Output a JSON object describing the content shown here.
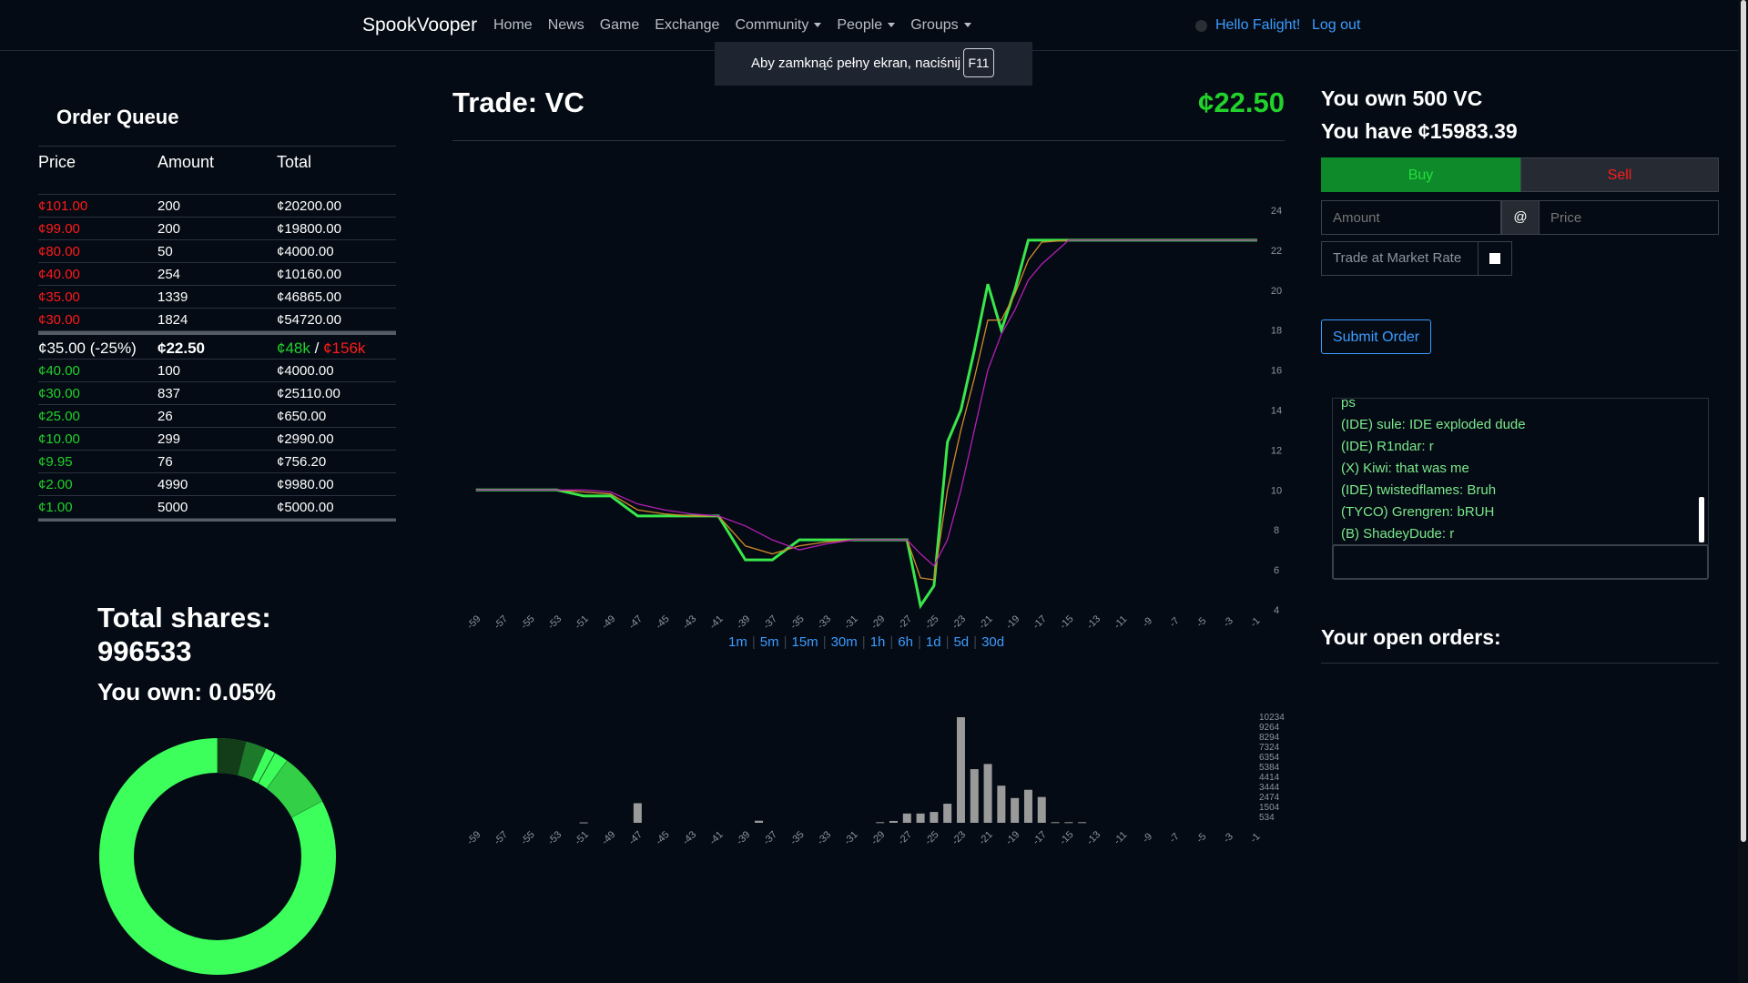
{
  "navbar": {
    "brand": "SpookVooper",
    "links": [
      "Home",
      "News",
      "Game",
      "Exchange",
      "Community",
      "People",
      "Groups"
    ],
    "hello": "Hello Falight!",
    "logout": "Log out"
  },
  "fullscreen_notice": {
    "text": "Aby zamknąć pełny ekran, naciśnij",
    "key": "F11"
  },
  "order_queue": {
    "title": "Order Queue",
    "headers": [
      "Price",
      "Amount",
      "Total"
    ],
    "asks": [
      {
        "price": "¢101.00",
        "amount": "200",
        "total": "¢20200.00"
      },
      {
        "price": "¢99.00",
        "amount": "200",
        "total": "¢19800.00"
      },
      {
        "price": "¢80.00",
        "amount": "50",
        "total": "¢4000.00"
      },
      {
        "price": "¢40.00",
        "amount": "254",
        "total": "¢10160.00"
      },
      {
        "price": "¢35.00",
        "amount": "1339",
        "total": "¢46865.00"
      },
      {
        "price": "¢30.00",
        "amount": "1824",
        "total": "¢54720.00"
      }
    ],
    "spread": {
      "left": "¢35.00 (-25%)",
      "mid": "¢22.50",
      "buy_vol": "¢48k",
      "slash": "/",
      "sell_vol": "¢156k"
    },
    "bids": [
      {
        "price": "¢40.00",
        "amount": "100",
        "total": "¢4000.00"
      },
      {
        "price": "¢30.00",
        "amount": "837",
        "total": "¢25110.00"
      },
      {
        "price": "¢25.00",
        "amount": "26",
        "total": "¢650.00"
      },
      {
        "price": "¢10.00",
        "amount": "299",
        "total": "¢2990.00"
      },
      {
        "price": "¢9.95",
        "amount": "76",
        "total": "¢756.20"
      },
      {
        "price": "¢2.00",
        "amount": "4990",
        "total": "¢9980.00"
      },
      {
        "price": "¢1.00",
        "amount": "5000",
        "total": "¢5000.00"
      }
    ]
  },
  "shares": {
    "total_label": "Total shares:",
    "total_value": "996533",
    "own_label": "You own: 0.05%",
    "owned_fraction": 0.0005
  },
  "trade": {
    "title": "Trade: VC",
    "price": "¢22.50"
  },
  "ranges": [
    "1m",
    "5m",
    "15m",
    "30m",
    "1h",
    "6h",
    "1d",
    "5d",
    "30d"
  ],
  "chart_data": [
    {
      "type": "line",
      "x": [
        -59,
        -57,
        -55,
        -53,
        -51,
        -49,
        -47,
        -45,
        -43,
        -41,
        -39,
        -37,
        -35,
        -33,
        -31,
        -29,
        -27,
        -26,
        -25,
        -24,
        -23,
        -22,
        -21,
        -20,
        -19,
        -18,
        -17,
        -15,
        -13,
        -11,
        -9,
        -7,
        -5,
        -3,
        -1
      ],
      "x_ticks": [
        -59,
        -57,
        -55,
        -53,
        -51,
        -49,
        -47,
        -45,
        -43,
        -41,
        -39,
        -37,
        -35,
        -33,
        -31,
        -29,
        -27,
        -25,
        -23,
        -21,
        -19,
        -17,
        -15,
        -13,
        -11,
        -9,
        -7,
        -5,
        -3,
        -1
      ],
      "y_ticks": [
        4,
        6,
        8,
        10,
        12,
        14,
        16,
        18,
        20,
        22,
        24
      ],
      "ylim": [
        4,
        24.5
      ],
      "series": [
        {
          "color": "#39e64b",
          "values": [
            10,
            10,
            10,
            10,
            9.7,
            9.7,
            8.7,
            8.7,
            8.7,
            8.7,
            6.5,
            6.5,
            7.5,
            7.5,
            7.5,
            7.5,
            7.5,
            4.2,
            5.2,
            12.4,
            14,
            17,
            20.3,
            18,
            20,
            22.5,
            22.5,
            22.5,
            22.5,
            22.5,
            22.5,
            22.5,
            22.5,
            22.5,
            22.5
          ]
        },
        {
          "color": "#d08a2a",
          "values": [
            10,
            10,
            10,
            10,
            9.9,
            9.8,
            9,
            8.8,
            8.7,
            8.7,
            7.2,
            6.8,
            7.2,
            7.4,
            7.5,
            7.5,
            7.5,
            5.6,
            5.5,
            10,
            13,
            15.6,
            18.5,
            18.5,
            19.8,
            21.5,
            22.4,
            22.5,
            22.5,
            22.5,
            22.5,
            22.5,
            22.5,
            22.5,
            22.5
          ]
        },
        {
          "color": "#b21fb5",
          "values": [
            10,
            10,
            10,
            10,
            10,
            9.9,
            9.3,
            9,
            8.8,
            8.7,
            8.2,
            7.5,
            7,
            7.3,
            7.5,
            7.5,
            7.5,
            6.8,
            6.2,
            7.5,
            10,
            13,
            16,
            17.8,
            19,
            20.5,
            21.3,
            22.5,
            22.5,
            22.5,
            22.5,
            22.5,
            22.5,
            22.5,
            22.5
          ]
        }
      ]
    },
    {
      "type": "bar",
      "x_ticks": [
        -59,
        -57,
        -55,
        -53,
        -51,
        -49,
        -47,
        -45,
        -43,
        -41,
        -39,
        -37,
        -35,
        -33,
        -31,
        -29,
        -27,
        -25,
        -23,
        -21,
        -19,
        -17,
        -15,
        -13,
        -11,
        -9,
        -7,
        -5,
        -3,
        -1
      ],
      "y_ticks": [
        534,
        1504,
        2474,
        3444,
        4414,
        5384,
        6354,
        7324,
        8294,
        9264,
        10234
      ],
      "ylim": [
        0,
        10234
      ],
      "x": [
        -51,
        -47,
        -38,
        -29,
        -28,
        -27,
        -26,
        -25,
        -24,
        -23,
        -22,
        -21,
        -20,
        -19,
        -18,
        -17,
        -16,
        -15,
        -14
      ],
      "values": [
        40,
        1900,
        200,
        60,
        180,
        900,
        900,
        1050,
        1850,
        10234,
        5200,
        5700,
        3600,
        2400,
        3200,
        2500,
        60,
        60,
        60
      ],
      "color": "#9a9a9a"
    },
    {
      "type": "pie",
      "values": [
        99.95,
        0.05
      ],
      "colors": [
        "#3cff5c",
        "#000000"
      ]
    }
  ],
  "right_panel": {
    "own": "You own 500 VC",
    "have": "You have ¢15983.39",
    "buy": "Buy",
    "sell": "Sell",
    "amount_placeholder": "Amount",
    "at": "@",
    "price_placeholder": "Price",
    "market_label": "Trade at Market Rate",
    "submit": "Submit Order",
    "chat": [
      "ps",
      "(IDE) sule: IDE exploded dude",
      "(IDE) R1ndar: r",
      "(X) Kiwi: that was me",
      "(IDE) twistedflames: Bruh",
      "(TYCO) Grengren: bRUH",
      "(B) ShadeyDude: r"
    ],
    "open_orders": "Your open orders:"
  }
}
